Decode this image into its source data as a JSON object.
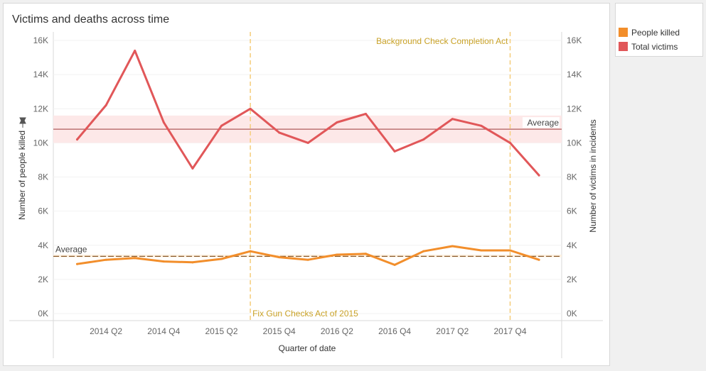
{
  "title": "Victims and deaths across time",
  "legend": {
    "items": [
      {
        "label": "People killed",
        "color": "#f28e2b"
      },
      {
        "label": "Total victims",
        "color": "#e15759"
      }
    ]
  },
  "colors": {
    "people_killed": "#f28e2b",
    "total_victims": "#e15759",
    "average_band": "#fde8e8",
    "average_line_victims": "#b05a5a",
    "average_line_killed": "#8a5a2b",
    "reference_line": "#f5cd7a",
    "reference_text": "#c9a227"
  },
  "chart_data": {
    "type": "line",
    "x_axis": {
      "title": "Quarter of date",
      "ticks": [
        "2014 Q2",
        "2014 Q4",
        "2015 Q2",
        "2015 Q4",
        "2016 Q2",
        "2016 Q4",
        "2017 Q2",
        "2017 Q4"
      ]
    },
    "y_left": {
      "title": "Number of people killed",
      "range": [
        0,
        16000
      ],
      "ticks": [
        "0K",
        "2K",
        "4K",
        "6K",
        "8K",
        "10K",
        "12K",
        "14K",
        "16K"
      ]
    },
    "y_right": {
      "title": "Number of victims in incidents",
      "range": [
        0,
        16000
      ],
      "ticks": [
        "0K",
        "2K",
        "4K",
        "6K",
        "8K",
        "10K",
        "12K",
        "14K",
        "16K"
      ]
    },
    "x": [
      "2014 Q1",
      "2014 Q2",
      "2014 Q3",
      "2014 Q4",
      "2015 Q1",
      "2015 Q2",
      "2015 Q3",
      "2015 Q4",
      "2016 Q1",
      "2016 Q2",
      "2016 Q3",
      "2016 Q4",
      "2017 Q1",
      "2017 Q2",
      "2017 Q3",
      "2017 Q4",
      "2018 Q1"
    ],
    "series": [
      {
        "name": "Total victims",
        "axis": "right",
        "values": [
          10200,
          12200,
          15400,
          11200,
          8500,
          11000,
          12000,
          10600,
          10000,
          11200,
          11700,
          9500,
          10200,
          11400,
          11000,
          10000,
          8100
        ]
      },
      {
        "name": "People killed",
        "axis": "left",
        "values": [
          2900,
          3150,
          3250,
          3050,
          3000,
          3200,
          3650,
          3300,
          3150,
          3450,
          3500,
          2850,
          3650,
          3950,
          3700,
          3700,
          3150
        ]
      }
    ],
    "average_lines": [
      {
        "series": "Total victims",
        "label": "Average",
        "value": 10800,
        "band": [
          10000,
          11600
        ]
      },
      {
        "series": "People killed",
        "label": "Average",
        "value": 3350,
        "band": [
          3300,
          3450
        ]
      }
    ],
    "reference_lines": [
      {
        "label": "Fix Gun Checks Act of 2015",
        "x": "2015 Q3"
      },
      {
        "label": "Background Check Completion Act",
        "x": "2017 Q4"
      }
    ]
  }
}
